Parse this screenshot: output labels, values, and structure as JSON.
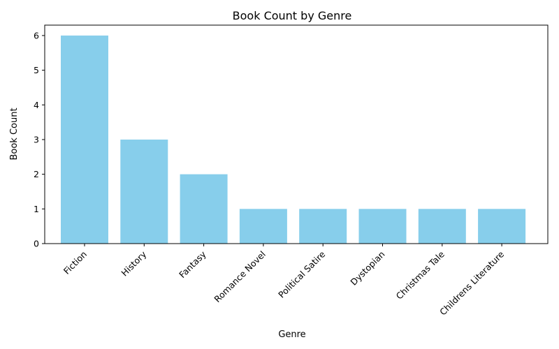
{
  "chart_data": {
    "type": "bar",
    "title": "Book Count by Genre",
    "xlabel": "Genre",
    "ylabel": "Book Count",
    "categories": [
      "Fiction",
      "History",
      "Fantasy",
      "Romance Novel",
      "Political Satire",
      "Dystopian",
      "Christmas Tale",
      "Childrens Literature"
    ],
    "values": [
      6,
      3,
      2,
      1,
      1,
      1,
      1,
      1
    ],
    "ylim": [
      0,
      6.3
    ],
    "yticks": [
      "0",
      "1",
      "2",
      "3",
      "4",
      "5",
      "6"
    ],
    "bar_color": "#87ceeb",
    "grid": false,
    "legend": "none"
  }
}
